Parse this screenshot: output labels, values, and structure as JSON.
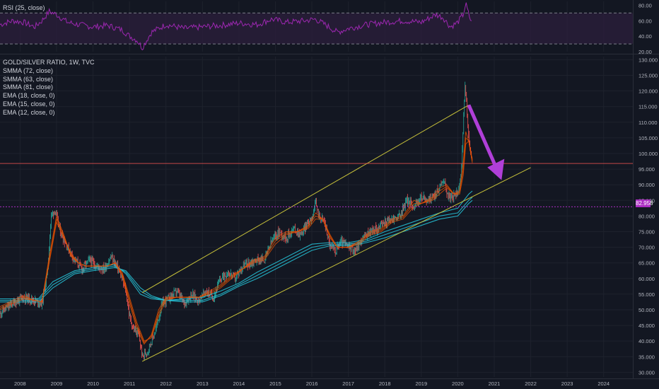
{
  "colors": {
    "background": "#131722",
    "grid": "#1e222d",
    "axis_text": "#b2b5be",
    "rsi_line": "#9c27b0",
    "rsi_band": "#2a1e3b",
    "channel": "#c7c13a",
    "candle_up": "#26a69a",
    "candle_down": "#ef5350",
    "ema": "#e65100",
    "smma": "#26c6da",
    "horizontal_red": "#ef5350",
    "horizontal_purple": "#ab2cc2",
    "arrow": "#b03fd8"
  },
  "rsi_panel": {
    "legend": "RSI (25, close)",
    "y_ticks": [
      "80.00",
      "60.00",
      "40.00",
      "20.00"
    ],
    "upper_band": 70,
    "lower_band": 30,
    "ylim": [
      20,
      85
    ]
  },
  "main_panel": {
    "legend": [
      "GOLD/SILVER RATIO, 1W, TVC",
      "SMMA (72, close)",
      "SMMA (63, close)",
      "SMMA (81, close)",
      "EMA (18, close, 0)",
      "EMA (15, close, 0)",
      "EMA (12, close, 0)"
    ],
    "y_ticks": [
      "130.000",
      "125.000",
      "120.000",
      "115.000",
      "110.000",
      "105.000",
      "100.000",
      "95.000",
      "90.000",
      "85.000",
      "80.000",
      "75.000",
      "70.000",
      "65.000",
      "60.000",
      "55.000",
      "50.000",
      "45.000",
      "40.000",
      "35.000",
      "30.000"
    ],
    "x_ticks": [
      "2008",
      "2009",
      "2010",
      "2011",
      "2012",
      "2013",
      "2014",
      "2015",
      "2016",
      "2017",
      "2018",
      "2019",
      "2020",
      "2021",
      "2022",
      "2023",
      "2024"
    ],
    "current_price_label": "82.958",
    "horizontal_line_red": 96.8,
    "horizontal_line_purple": 82.958,
    "ylim": [
      28.5,
      131
    ]
  },
  "chart_data": {
    "type": "line",
    "title": "GOLD/SILVER RATIO, 1W, TVC",
    "xlabel": "",
    "ylabel": "",
    "x_range": [
      2007.45,
      2024.8
    ],
    "series": [
      {
        "name": "GOLD/SILVER RATIO",
        "x": [
          2007.45,
          2007.8,
          2008.1,
          2008.4,
          2008.6,
          2008.75,
          2008.85,
          2008.95,
          2009.1,
          2009.3,
          2009.5,
          2009.7,
          2009.9,
          2010.1,
          2010.3,
          2010.5,
          2010.7,
          2010.9,
          2011.0,
          2011.1,
          2011.25,
          2011.35,
          2011.5,
          2011.7,
          2011.9,
          2012.1,
          2012.3,
          2012.5,
          2012.7,
          2012.9,
          2013.1,
          2013.3,
          2013.5,
          2013.7,
          2013.9,
          2014.1,
          2014.3,
          2014.5,
          2014.7,
          2014.9,
          2015.1,
          2015.3,
          2015.5,
          2015.7,
          2015.9,
          2016.0,
          2016.1,
          2016.2,
          2016.35,
          2016.5,
          2016.65,
          2016.8,
          2017.0,
          2017.2,
          2017.4,
          2017.6,
          2017.8,
          2018.0,
          2018.2,
          2018.4,
          2018.6,
          2018.8,
          2019.0,
          2019.2,
          2019.4,
          2019.5,
          2019.6,
          2019.75,
          2019.9,
          2020.0,
          2020.1,
          2020.15,
          2020.2,
          2020.25,
          2020.3,
          2020.35,
          2020.4
        ],
        "values": [
          49,
          52,
          54,
          53,
          52,
          62,
          80,
          82,
          75,
          70,
          66,
          63,
          66,
          64,
          63,
          67,
          63,
          56,
          48,
          44,
          42,
          35,
          37,
          43,
          52,
          54,
          56,
          52,
          55,
          53,
          56,
          54,
          60,
          62,
          60,
          64,
          65,
          66,
          66,
          72,
          75,
          73,
          76,
          74,
          78,
          80,
          84,
          80,
          78,
          70,
          69,
          72,
          70,
          69,
          73,
          75,
          76,
          78,
          79,
          80,
          85,
          83,
          86,
          85,
          87,
          89,
          92,
          86,
          86,
          88,
          94,
          108,
          122,
          114,
          105,
          100,
          97
        ]
      },
      {
        "name": "SMMA (72, close)",
        "x": [
          2007.45,
          2008.5,
          2008.9,
          2009.5,
          2010.0,
          2010.6,
          2010.9,
          2011.3,
          2011.6,
          2012.0,
          2012.5,
          2013.0,
          2013.5,
          2014.0,
          2014.5,
          2015.0,
          2015.5,
          2016.0,
          2016.5,
          2017.0,
          2017.5,
          2018.0,
          2018.5,
          2019.0,
          2019.5,
          2020.0,
          2020.3,
          2020.4
        ],
        "values": [
          53,
          53,
          58,
          62,
          63,
          64,
          62,
          56,
          54,
          53,
          53,
          53,
          55,
          58,
          61,
          64,
          67,
          70,
          71,
          71,
          72,
          74,
          76,
          78,
          80,
          81,
          85,
          86
        ]
      },
      {
        "name": "SMMA (63, close)",
        "x": [
          2007.45,
          2008.5,
          2008.9,
          2009.5,
          2010.0,
          2010.6,
          2010.9,
          2011.3,
          2011.6,
          2012.0,
          2012.5,
          2013.0,
          2013.5,
          2014.0,
          2014.5,
          2015.0,
          2015.5,
          2016.0,
          2016.5,
          2017.0,
          2017.5,
          2018.0,
          2018.5,
          2019.0,
          2019.5,
          2020.0,
          2020.3,
          2020.4
        ],
        "values": [
          53.5,
          53.5,
          59,
          62.5,
          63.5,
          64.5,
          61.5,
          55,
          53.5,
          53,
          53.5,
          54,
          56,
          58.5,
          62,
          65,
          68,
          71,
          71.5,
          71.5,
          72.5,
          75,
          77,
          79,
          81,
          82.5,
          87,
          88
        ]
      },
      {
        "name": "SMMA (81, close)",
        "x": [
          2007.45,
          2008.5,
          2008.9,
          2009.5,
          2010.0,
          2010.6,
          2010.9,
          2011.3,
          2011.6,
          2012.0,
          2012.5,
          2013.0,
          2013.5,
          2014.0,
          2014.5,
          2015.0,
          2015.5,
          2016.0,
          2016.5,
          2017.0,
          2017.5,
          2018.0,
          2018.5,
          2019.0,
          2019.5,
          2020.0,
          2020.3,
          2020.4
        ],
        "values": [
          52.5,
          52.5,
          57,
          61.5,
          62.5,
          63.5,
          62.5,
          57,
          54.5,
          53,
          52.5,
          52.5,
          54.5,
          57.5,
          60,
          63,
          66,
          69,
          70.5,
          70.5,
          71.5,
          73,
          75,
          77,
          79,
          80,
          84,
          85
        ]
      },
      {
        "name": "EMA (18, close, 0)",
        "x": [
          2007.45,
          2007.8,
          2008.1,
          2008.4,
          2008.6,
          2008.8,
          2009.0,
          2009.2,
          2009.4,
          2009.6,
          2009.8,
          2010.0,
          2010.2,
          2010.4,
          2010.6,
          2010.8,
          2011.0,
          2011.2,
          2011.4,
          2011.6,
          2011.8,
          2012.0,
          2012.3,
          2012.6,
          2012.9,
          2013.2,
          2013.5,
          2013.8,
          2014.1,
          2014.4,
          2014.7,
          2015.0,
          2015.3,
          2015.6,
          2015.9,
          2016.1,
          2016.3,
          2016.5,
          2016.7,
          2017.0,
          2017.3,
          2017.6,
          2017.9,
          2018.2,
          2018.5,
          2018.8,
          2019.0,
          2019.3,
          2019.5,
          2019.7,
          2019.9,
          2020.05,
          2020.15,
          2020.22,
          2020.3,
          2020.4
        ],
        "values": [
          50,
          52,
          53.5,
          53,
          52.5,
          65,
          78,
          73,
          68,
          65,
          64,
          64,
          64,
          64,
          65,
          62,
          54,
          46,
          40,
          41,
          48,
          53,
          54,
          54,
          54,
          55,
          57,
          60,
          63,
          65,
          66,
          71,
          74,
          75,
          76,
          79,
          79,
          74,
          70,
          70,
          71,
          74,
          75,
          78,
          79,
          83,
          84,
          85,
          87,
          89,
          87,
          87,
          93,
          103,
          104,
          98
        ]
      },
      {
        "name": "EMA (15, close, 0)",
        "x": [
          2007.45,
          2007.8,
          2008.1,
          2008.4,
          2008.6,
          2008.8,
          2009.0,
          2009.2,
          2009.4,
          2009.6,
          2009.8,
          2010.0,
          2010.2,
          2010.4,
          2010.6,
          2010.8,
          2011.0,
          2011.2,
          2011.4,
          2011.6,
          2011.8,
          2012.0,
          2012.3,
          2012.6,
          2012.9,
          2013.2,
          2013.5,
          2013.8,
          2014.1,
          2014.4,
          2014.7,
          2015.0,
          2015.3,
          2015.6,
          2015.9,
          2016.1,
          2016.3,
          2016.5,
          2016.7,
          2017.0,
          2017.3,
          2017.6,
          2017.9,
          2018.2,
          2018.5,
          2018.8,
          2019.0,
          2019.3,
          2019.5,
          2019.7,
          2019.9,
          2020.05,
          2020.15,
          2020.22,
          2020.3,
          2020.4
        ],
        "values": [
          50.5,
          52.5,
          54,
          53,
          52.5,
          66,
          79,
          73.5,
          67.5,
          65,
          64,
          64,
          64,
          64,
          65,
          61.5,
          53,
          45,
          39.5,
          41.5,
          49,
          53.5,
          54,
          54,
          54,
          55.5,
          57.5,
          60.5,
          63,
          65.5,
          66.5,
          72,
          74.5,
          75,
          76.5,
          80,
          79,
          73.5,
          70,
          70,
          71.5,
          74.5,
          75.5,
          78.5,
          79.5,
          84,
          84,
          85.5,
          88,
          89.5,
          87,
          87.5,
          95,
          105,
          104,
          97.5
        ]
      },
      {
        "name": "EMA (12, close, 0)",
        "x": [
          2007.45,
          2007.8,
          2008.1,
          2008.4,
          2008.6,
          2008.8,
          2009.0,
          2009.2,
          2009.4,
          2009.6,
          2009.8,
          2010.0,
          2010.2,
          2010.4,
          2010.6,
          2010.8,
          2011.0,
          2011.2,
          2011.4,
          2011.6,
          2011.8,
          2012.0,
          2012.3,
          2012.6,
          2012.9,
          2013.2,
          2013.5,
          2013.8,
          2014.1,
          2014.4,
          2014.7,
          2015.0,
          2015.3,
          2015.6,
          2015.9,
          2016.1,
          2016.3,
          2016.5,
          2016.7,
          2017.0,
          2017.3,
          2017.6,
          2017.9,
          2018.2,
          2018.5,
          2018.8,
          2019.0,
          2019.3,
          2019.5,
          2019.7,
          2019.9,
          2020.05,
          2020.15,
          2020.22,
          2020.3,
          2020.4
        ],
        "values": [
          51,
          53,
          54.5,
          53,
          52.5,
          67,
          80,
          74,
          67,
          65,
          64,
          64,
          64,
          64,
          65,
          61,
          52,
          44,
          39,
          42,
          50,
          54,
          54,
          54,
          54,
          56,
          58,
          61,
          63,
          66,
          67,
          73,
          75,
          75,
          77,
          81,
          79,
          73,
          70,
          70,
          72,
          75,
          76,
          79,
          80,
          85,
          84,
          86,
          89,
          90,
          87,
          88,
          97,
          107,
          104,
          97
        ]
      },
      {
        "name": "RSI (25, close)",
        "x": [
          2007.45,
          2007.8,
          2008.1,
          2008.4,
          2008.6,
          2008.8,
          2009.0,
          2009.3,
          2009.6,
          2010.0,
          2010.4,
          2010.8,
          2011.0,
          2011.2,
          2011.35,
          2011.6,
          2012.0,
          2012.5,
          2013.0,
          2013.5,
          2014.0,
          2014.5,
          2014.9,
          2015.3,
          2015.8,
          2016.1,
          2016.4,
          2016.7,
          2017.0,
          2017.5,
          2018.0,
          2018.5,
          2019.0,
          2019.4,
          2019.6,
          2019.8,
          2020.0,
          2020.15,
          2020.22,
          2020.3,
          2020.4
        ],
        "values": [
          55,
          60,
          58,
          52,
          60,
          72,
          68,
          58,
          55,
          52,
          54,
          48,
          40,
          35,
          25,
          45,
          55,
          50,
          52,
          54,
          57,
          55,
          62,
          58,
          60,
          62,
          54,
          45,
          50,
          55,
          58,
          60,
          58,
          68,
          64,
          52,
          58,
          68,
          82,
          68,
          55
        ]
      }
    ],
    "channel_lines": [
      {
        "name": "upper",
        "x": [
          2011.35,
          2020.3
        ],
        "values": [
          55.5,
          115.5
        ]
      },
      {
        "name": "lower",
        "x": [
          2011.35,
          2022.0
        ],
        "values": [
          33.5,
          95.5
        ]
      }
    ],
    "grid": true,
    "legend": "top-left"
  }
}
